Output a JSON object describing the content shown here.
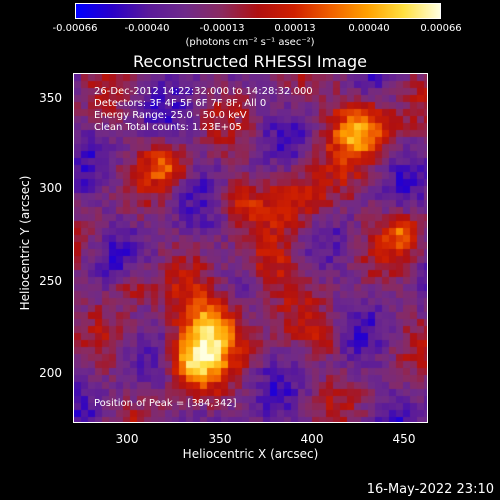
{
  "colorbar": {
    "ticks": [
      "-0.00066",
      "-0.00040",
      "-0.00013",
      "0.00013",
      "0.00040",
      "0.00066"
    ],
    "units": "(photons cm⁻² s⁻¹ asec⁻²)"
  },
  "title": "Reconstructed RHESSI Image",
  "info": {
    "time": "26-Dec-2012 14:22:32.000 to 14:28:32.000",
    "detectors": "Detectors: 3F 4F 5F 6F 7F 8F, All 0",
    "energy": "Energy Range: 25.0 - 50.0 keV",
    "clean": "Clean     Total counts: 1.23E+05",
    "peak": "Position of Peak = [384,342]"
  },
  "axes": {
    "xlabel": "Heliocentric X (arcsec)",
    "ylabel": "Heliocentric Y (arcsec)",
    "xticks": [
      "300",
      "350",
      "400",
      "450"
    ],
    "yticks": [
      "350",
      "300",
      "250",
      "200"
    ],
    "xlim": [
      270,
      462
    ],
    "ylim": [
      170,
      365
    ]
  },
  "colormap": [
    "#0000ff",
    "#2a00c8",
    "#5a1a9a",
    "#6f2a8a",
    "#8a2a60",
    "#b01010",
    "#d02000",
    "#f06000",
    "#ffa000",
    "#ffe040",
    "#ffffe0"
  ],
  "footer_timestamp": "16-May-2022 23:10"
}
